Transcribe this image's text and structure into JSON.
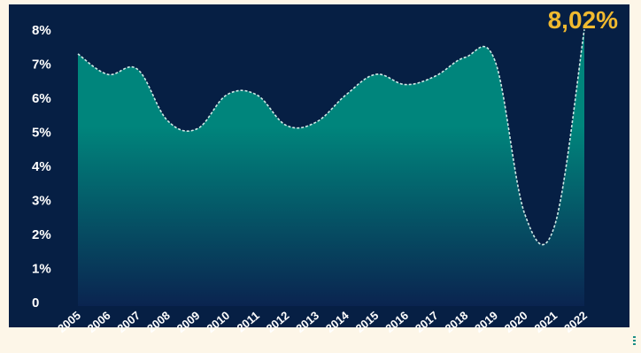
{
  "chart_data": {
    "type": "area",
    "x": [
      "2005",
      "2006",
      "2007",
      "2008",
      "2009",
      "2010",
      "2011",
      "2012",
      "2013",
      "2014",
      "2015",
      "2016",
      "2017",
      "2018",
      "2019",
      "2020",
      "2021",
      "2022"
    ],
    "values": [
      7.3,
      6.7,
      6.85,
      5.35,
      5.1,
      6.1,
      6.1,
      5.2,
      5.3,
      6.1,
      6.7,
      6.4,
      6.65,
      7.2,
      7.1,
      2.6,
      2.25,
      8.02
    ],
    "yticks": [
      "0",
      "1%",
      "2%",
      "3%",
      "4%",
      "5%",
      "6%",
      "7%",
      "8%"
    ],
    "ylim": [
      0,
      8.5
    ],
    "grid": false,
    "annotation": "8,02%",
    "colors": {
      "panel": "#061f44",
      "fill_top": "#00857c",
      "fill_bottom": "#0a2450",
      "line": "#cfe9e6",
      "annotation": "#f0b92f"
    }
  }
}
